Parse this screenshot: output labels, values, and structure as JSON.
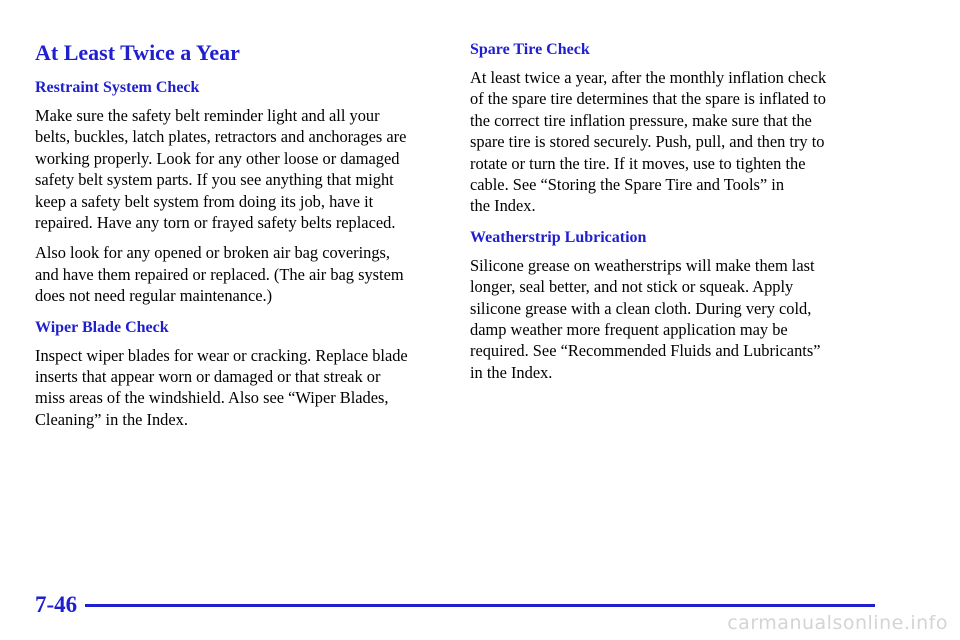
{
  "header": {
    "title": "At Least Twice a Year"
  },
  "sections": [
    {
      "heading": "Restraint System Check",
      "paragraphs": [
        [
          "Make sure the safety belt reminder light and all your",
          "belts, buckles, latch plates, retractors and anchorages are",
          "working properly. Look for any other loose or damaged",
          "safety belt system parts. If you see anything that might",
          "keep a safety belt system from doing its job, have it",
          "repaired. Have any torn or frayed safety belts replaced."
        ],
        [
          "Also look for any opened or broken air bag coverings,",
          "and have them repaired or replaced. (The air bag system",
          "does not need regular maintenance.)"
        ]
      ]
    },
    {
      "heading": "Wiper Blade Check",
      "paragraphs": [
        [
          "Inspect wiper blades for wear or cracking. Replace blade",
          "inserts that appear worn or damaged or that streak or",
          "miss areas of the windshield. Also see “Wiper Blades,",
          "Cleaning” in the Index."
        ]
      ]
    },
    {
      "heading": "Spare Tire Check",
      "paragraphs": [
        [
          "At least twice a year, after the monthly inflation check",
          "of the spare tire determines that the spare is inflated to",
          "the correct tire inflation pressure, make sure that the",
          "spare tire is stored securely. Push, pull, and then try to",
          "rotate or turn the tire. If it moves, use to tighten the",
          "cable. See “Storing the Spare Tire and Tools” in",
          "the Index."
        ]
      ]
    },
    {
      "heading": "Weatherstrip Lubrication",
      "paragraphs": [
        [
          "Silicone grease on weatherstrips will make them last",
          "longer, seal better, and not stick or squeak. Apply",
          "silicone grease with a clean cloth. During very cold,",
          "damp weather more frequent application may be",
          "required. See “Recommended Fluids and Lubricants”",
          "in the Index."
        ]
      ]
    }
  ],
  "footer": {
    "page_number": "7-46",
    "watermark": "carmanualsonline.info"
  }
}
